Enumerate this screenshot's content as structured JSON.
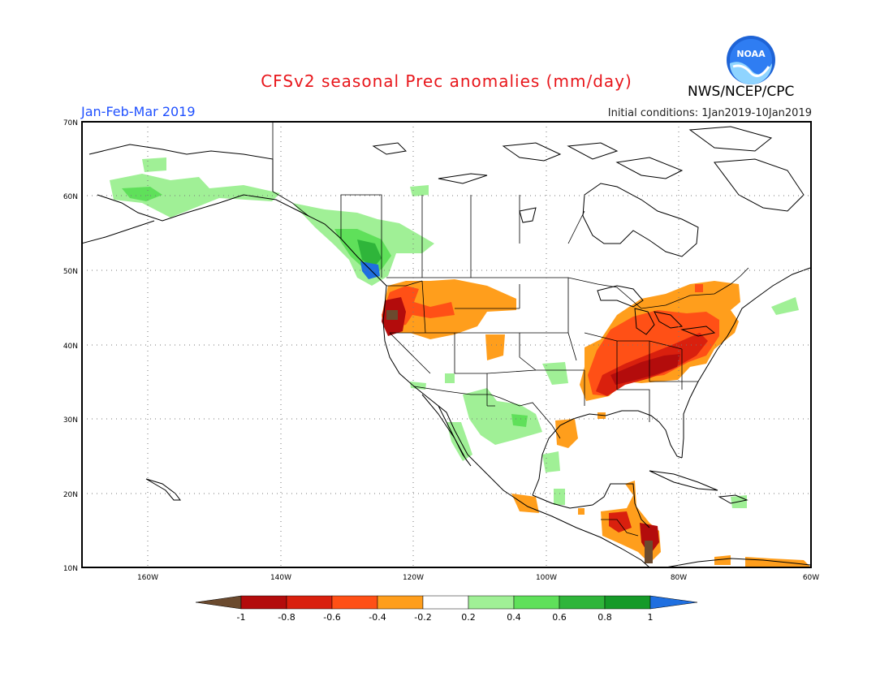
{
  "title": "CFSv2 seasonal Prec anomalies (mm/day)",
  "period": "Jan-Feb-Mar 2019",
  "initial_conditions": "Initial conditions: 1Jan2019-10Jan2019",
  "agency": "NWS/NCEP/CPC",
  "logo_text": "NOAA",
  "map": {
    "lon_range": [
      -170,
      -60
    ],
    "lat_range": [
      10,
      70
    ],
    "lon_ticks": [
      "160W",
      "140W",
      "120W",
      "100W",
      "80W",
      "60W"
    ],
    "lat_ticks": [
      "70N",
      "60N",
      "50N",
      "40N",
      "30N",
      "20N",
      "10N"
    ],
    "gridlines": true
  },
  "colorbar": {
    "labels": [
      "-1",
      "-0.8",
      "-0.6",
      "-0.4",
      "-0.2",
      "0.2",
      "0.4",
      "0.6",
      "0.8",
      "1"
    ],
    "colors": [
      "#6b4a2e",
      "#b30c0c",
      "#d9200e",
      "#ff5016",
      "#ff9e1c",
      "#ffffff",
      "#a0f096",
      "#5fe05a",
      "#2fb53a",
      "#159a28",
      "#1f6fe0"
    ]
  },
  "anomaly_regions": [
    {
      "region": "Pacific Northwest / Oregon",
      "value": -0.7
    },
    {
      "region": "Idaho / Montana",
      "value": -0.4
    },
    {
      "region": "Ohio / Tennessee Valley",
      "value": -0.7
    },
    {
      "region": "Northeast US",
      "value": -0.4
    },
    {
      "region": "Central America",
      "value": -0.5
    },
    {
      "region": "British Columbia coast",
      "value": 0.6
    },
    {
      "region": "Alaska",
      "value": 0.4
    },
    {
      "region": "Northern Mexico",
      "value": 0.3
    }
  ]
}
